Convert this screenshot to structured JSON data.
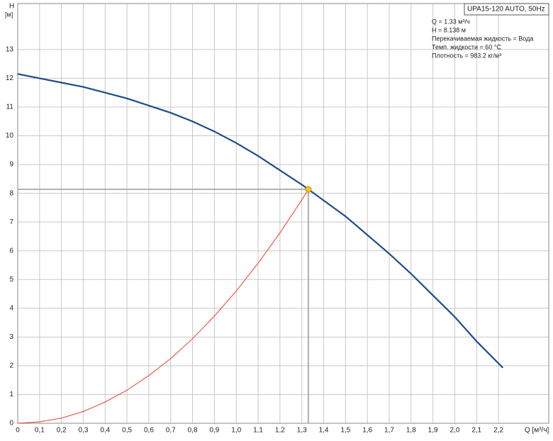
{
  "chart_data": {
    "type": "line",
    "title": "UPA15-120 AUTO, 50Hz",
    "info": [
      "Q = 1.33 м³/ч",
      "H = 8.138 м",
      "Перекачиваемая жидкость = Вода",
      "Темп. жидкости = 60 °C",
      "Плотность = 983.2 кг/м³"
    ],
    "x_label": "Q [м³/ч]",
    "y_label": "H",
    "y_unit": "[м]",
    "xlim": [
      0,
      2.43
    ],
    "ylim": [
      0,
      14.6
    ],
    "grid": true,
    "xticks": [
      0,
      {
        "value": 0.1,
        "label": "0,1"
      },
      {
        "value": 0.2,
        "label": "0,2"
      },
      {
        "value": 0.3,
        "label": "0,3"
      },
      {
        "value": 0.4,
        "label": "0,4"
      },
      {
        "value": 0.5,
        "label": "0,5"
      },
      {
        "value": 0.6,
        "label": "0,6"
      },
      {
        "value": 0.7,
        "label": "0,7"
      },
      {
        "value": 0.8,
        "label": "0,8"
      },
      {
        "value": 0.9,
        "label": "0,9"
      },
      {
        "value": 1.0,
        "label": "1,0"
      },
      {
        "value": 1.1,
        "label": "1,1"
      },
      {
        "value": 1.2,
        "label": "1,2"
      },
      {
        "value": 1.3,
        "label": "1,3"
      },
      {
        "value": 1.4,
        "label": "1,4"
      },
      {
        "value": 1.5,
        "label": "1,5"
      },
      {
        "value": 1.6,
        "label": "1,6"
      },
      {
        "value": 1.7,
        "label": "1,7"
      },
      {
        "value": 1.8,
        "label": "1,8"
      },
      {
        "value": 1.9,
        "label": "1,9"
      },
      {
        "value": 2.0,
        "label": "2,0"
      },
      {
        "value": 2.1,
        "label": "2,1"
      },
      {
        "value": 2.2,
        "label": "2,2"
      }
    ],
    "yticks": [
      0,
      1,
      2,
      3,
      4,
      5,
      6,
      7,
      8,
      9,
      10,
      11,
      12,
      13
    ],
    "series": [
      {
        "color": "#1b4d8c",
        "x": [
          0,
          0.1,
          0.2,
          0.3,
          0.4,
          0.5,
          0.6,
          0.7,
          0.8,
          0.9,
          1.0,
          1.1,
          1.2,
          1.3,
          1.33,
          1.4,
          1.5,
          1.6,
          1.7,
          1.8,
          1.9,
          2.0,
          2.1,
          2.22
        ],
        "values": [
          12.15,
          12.0,
          11.85,
          11.7,
          11.5,
          11.3,
          11.05,
          10.8,
          10.5,
          10.15,
          9.75,
          9.3,
          8.8,
          8.3,
          8.138,
          7.75,
          7.2,
          6.55,
          5.9,
          5.2,
          4.45,
          3.7,
          2.85,
          1.93
        ]
      },
      {
        "color": "#e8412c",
        "x": [
          0,
          0.1,
          0.2,
          0.3,
          0.4,
          0.5,
          0.6,
          0.7,
          0.8,
          0.9,
          1.0,
          1.1,
          1.2,
          1.3,
          1.33
        ],
        "values": [
          0,
          0.05,
          0.18,
          0.41,
          0.74,
          1.15,
          1.66,
          2.25,
          2.94,
          3.73,
          4.6,
          5.57,
          6.62,
          7.77,
          8.138
        ]
      }
    ],
    "operating_point": {
      "x": 1.33,
      "y": 8.138,
      "color": "#f5c518"
    }
  }
}
